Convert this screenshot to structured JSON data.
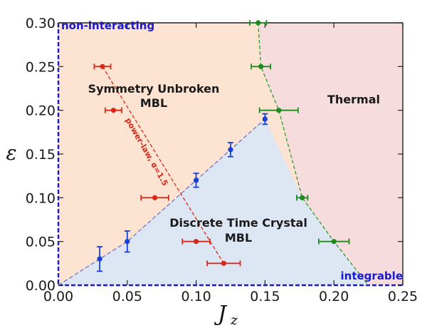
{
  "chart_data": {
    "type": "scatter",
    "xlabel": "J_z",
    "ylabel": "ε",
    "xlim": [
      0.0,
      0.25
    ],
    "ylim": [
      0.0,
      0.3
    ],
    "x_ticks": [
      "0.00",
      "0.05",
      "0.10",
      "0.15",
      "0.20",
      "0.25"
    ],
    "y_ticks": [
      "0.00",
      "0.05",
      "0.10",
      "0.15",
      "0.20",
      "0.25",
      "0.30"
    ],
    "regions": [
      {
        "label_lines": [
          "Symmetry Unbroken",
          "MBL"
        ],
        "color": "#fde4d2"
      },
      {
        "label_lines": [
          "Discrete Time Crystal",
          "MBL"
        ],
        "color": "#dde6f3"
      },
      {
        "label_lines": [
          "Thermal"
        ],
        "color": "#f6dcdc"
      }
    ],
    "corner_labels": {
      "top_left": "non-interacting",
      "bottom_right": "integrable"
    },
    "fit_annotation": "power-law, α=1.5",
    "series": [
      {
        "color": "#d42a1a",
        "points": [
          {
            "x": 0.032,
            "y": 0.25,
            "xerr": 0.006
          },
          {
            "x": 0.04,
            "y": 0.2,
            "xerr": 0.006
          },
          {
            "x": 0.07,
            "y": 0.1,
            "xerr": 0.01
          },
          {
            "x": 0.1,
            "y": 0.05,
            "xerr": 0.01
          },
          {
            "x": 0.12,
            "y": 0.025,
            "xerr": 0.012
          }
        ]
      },
      {
        "color": "#1a3fd4",
        "points": [
          {
            "x": 0.03,
            "y": 0.03,
            "yerr": 0.014
          },
          {
            "x": 0.05,
            "y": 0.05,
            "yerr": 0.012
          },
          {
            "x": 0.1,
            "y": 0.12,
            "yerr": 0.008
          },
          {
            "x": 0.125,
            "y": 0.155,
            "yerr": 0.008
          },
          {
            "x": 0.15,
            "y": 0.19,
            "yerr": 0.006
          }
        ]
      },
      {
        "color": "#1e8a1e",
        "points": [
          {
            "x": 0.145,
            "y": 0.3,
            "xerr": 0.006
          },
          {
            "x": 0.147,
            "y": 0.25,
            "xerr": 0.007
          },
          {
            "x": 0.16,
            "y": 0.2,
            "xerr": 0.014
          },
          {
            "x": 0.177,
            "y": 0.1,
            "xerr": 0.004
          },
          {
            "x": 0.2,
            "y": 0.05,
            "xerr": 0.011
          }
        ]
      }
    ]
  }
}
